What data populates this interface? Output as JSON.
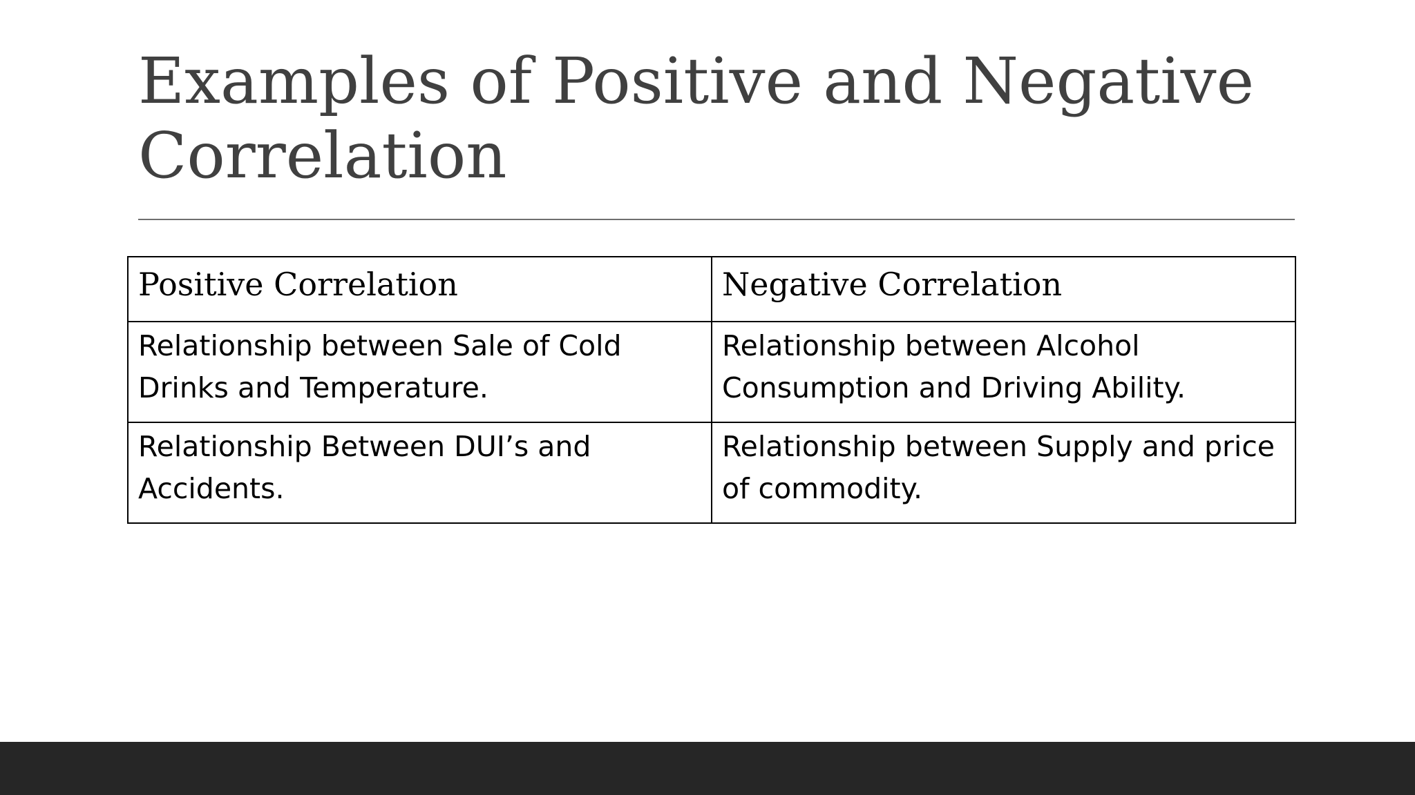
{
  "slide": {
    "title_line1": "Examples of Positive and Negative",
    "title_line2": "Correlation"
  },
  "table": {
    "headers": [
      "Positive Correlation",
      "Negative Correlation"
    ],
    "rows": [
      [
        "Relationship between Sale of Cold Drinks and Temperature.",
        "Relationship between Alcohol Consumption and Driving Ability."
      ],
      [
        "Relationship Between DUI’s and Accidents.",
        "Relationship between Supply and price of commodity."
      ]
    ]
  },
  "colors": {
    "title_text": "#404040",
    "rule": "#6e6e6e",
    "table_border": "#000000",
    "footer_bar": "#262626",
    "background": "#ffffff"
  }
}
